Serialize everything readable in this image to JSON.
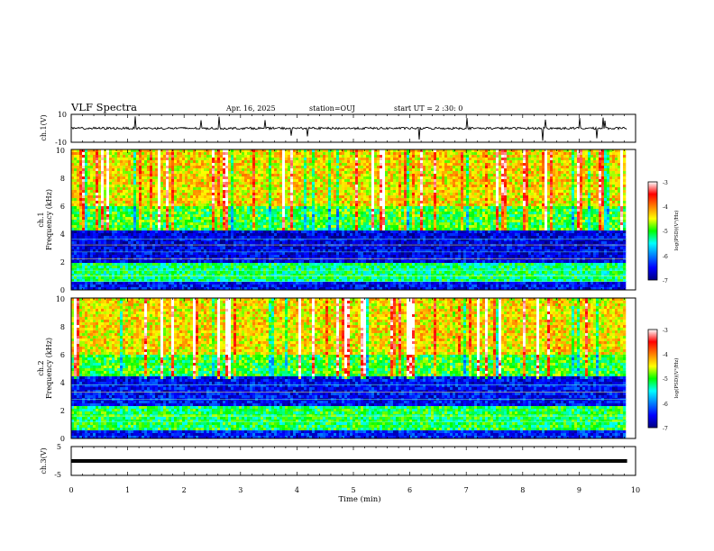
{
  "header": {
    "title": "VLF Spectra",
    "date": "Apr. 16, 2025",
    "station": "station=OUJ",
    "start": "start UT =  2 :30: 0"
  },
  "chart_data": [
    {
      "type": "line",
      "panel": "ch1-waveform",
      "ylabel": "ch.1(V)",
      "yticks": [
        "10",
        "-10"
      ],
      "ylim": [
        -10,
        10
      ],
      "baseline": 0
    },
    {
      "type": "heatmap",
      "panel": "ch1-spectrogram",
      "ylabel_line1": "ch.1",
      "ylabel_line2": "Frequency (kHz)",
      "yticks": [
        "0",
        "2",
        "4",
        "6",
        "8",
        "10"
      ],
      "ylim": [
        0,
        10
      ],
      "colorbar": {
        "label": "log(PSD)(V²/Hz)",
        "ticks": [
          "-3",
          "-4",
          "-5",
          "-6",
          "-7"
        ],
        "range": [
          -7,
          -3
        ]
      },
      "bands": [
        {
          "from": 0.0,
          "to": 0.6,
          "level": -6.5
        },
        {
          "from": 0.6,
          "to": 2.0,
          "level": -5.2
        },
        {
          "from": 2.0,
          "to": 4.3,
          "level": -6.6
        },
        {
          "from": 4.3,
          "to": 6.0,
          "level": -5.0
        },
        {
          "from": 6.0,
          "to": 10.0,
          "level": -4.4
        }
      ],
      "lines_khz": [
        0.6,
        1.0,
        1.4,
        2.2,
        2.7,
        3.2,
        3.6
      ]
    },
    {
      "type": "heatmap",
      "panel": "ch2-spectrogram",
      "ylabel_line1": "ch.2",
      "ylabel_line2": "Frequency (kHz)",
      "yticks": [
        "0",
        "2",
        "4",
        "6",
        "8",
        "10"
      ],
      "ylim": [
        0,
        10
      ],
      "colorbar": {
        "label": "log(PSD)(V²/Hz)",
        "ticks": [
          "-3",
          "-4",
          "-5",
          "-6",
          "-7"
        ],
        "range": [
          -7,
          -3
        ]
      },
      "bands": [
        {
          "from": 0.0,
          "to": 0.5,
          "level": -6.4
        },
        {
          "from": 0.5,
          "to": 2.3,
          "level": -5.1
        },
        {
          "from": 2.3,
          "to": 4.5,
          "level": -6.5
        },
        {
          "from": 4.5,
          "to": 6.0,
          "level": -5.0
        },
        {
          "from": 6.0,
          "to": 10.0,
          "level": -4.4
        }
      ],
      "lines_khz": [
        1.2,
        1.6,
        2.8,
        3.3,
        3.8
      ]
    },
    {
      "type": "line",
      "panel": "ch3-waveform",
      "ylabel": "ch.3(V)",
      "yticks": [
        "5",
        "0",
        "-5"
      ],
      "ylim": [
        -5,
        5
      ],
      "baseline": 0
    }
  ],
  "xaxis": {
    "label": "Time (min)",
    "ticks": [
      "0",
      "1",
      "2",
      "3",
      "4",
      "5",
      "6",
      "7",
      "8",
      "9",
      "10"
    ],
    "xlim": [
      0,
      10
    ],
    "data_end": 9.85
  }
}
